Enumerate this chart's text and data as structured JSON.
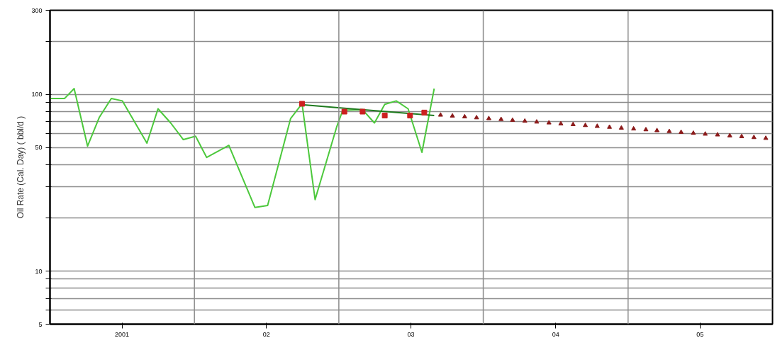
{
  "chart_data": {
    "type": "line",
    "ylabel": "Oil Rate (Cal. Day) ( bbl/d )",
    "log": "y",
    "xlim": [
      "2001-01-01",
      "2006-01-01"
    ],
    "ylim": [
      5,
      300
    ],
    "yticks": [
      5,
      {
        "value": 6,
        "label": null
      },
      {
        "value": 7,
        "label": null
      },
      {
        "value": 8,
        "label": null
      },
      {
        "value": 9,
        "label": null
      },
      10,
      {
        "value": 20,
        "label": null
      },
      {
        "value": 30,
        "label": null
      },
      {
        "value": 40,
        "label": null
      },
      50,
      {
        "value": 60,
        "label": null
      },
      {
        "value": 70,
        "label": null
      },
      {
        "value": 80,
        "label": null
      },
      {
        "value": 90,
        "label": null
      },
      100,
      {
        "value": 200,
        "label": null
      },
      300
    ],
    "xticks": [
      {
        "value": "2001-07-02",
        "label": "2001"
      },
      {
        "value": "2002-07-02",
        "label": "02"
      },
      {
        "value": "2003-07-02",
        "label": "03"
      },
      {
        "value": "2004-07-02",
        "label": "04"
      },
      {
        "value": "2005-07-02",
        "label": "05"
      }
    ],
    "grid": "y",
    "ref_lines": [
      {
        "axis": "x",
        "value": "2002-01-01",
        "color": "#8c8c8c"
      },
      {
        "axis": "x",
        "value": "2003-01-01",
        "color": "#8c8c8c"
      },
      {
        "axis": "x",
        "value": "2004-01-01",
        "color": "#8c8c8c"
      },
      {
        "axis": "x",
        "value": "2005-01-01",
        "color": "#8c8c8c"
      }
    ],
    "series": [
      {
        "marker": "none",
        "color": "#4cc83c",
        "x": [
          "2001-01-01",
          "2001-02-07",
          "2001-03-03",
          "2001-04-06",
          "2001-05-06",
          "2001-06-05",
          "2001-07-03",
          "2001-09-03",
          "2001-10-01",
          "2001-11-02",
          "2001-12-04",
          "2002-01-04",
          "2002-02-01",
          "2002-03-29",
          "2002-06-03",
          "2002-07-05",
          "2002-09-01",
          "2002-09-30",
          "2002-11-02",
          "2002-12-27",
          "2003-01-11",
          "2003-03-02",
          "2003-04-01",
          "2003-04-27",
          "2003-05-26",
          "2003-06-25",
          "2003-07-30",
          "2003-08-30"
        ],
        "values": [
          95,
          95,
          108,
          51,
          74.5,
          95,
          92,
          53,
          83,
          69,
          55.5,
          58,
          44,
          51.5,
          22.9,
          23.5,
          73,
          88.6,
          25.4,
          66,
          81.5,
          82,
          69,
          88,
          92,
          83,
          47,
          108
        ]
      },
      {
        "marker": "none",
        "color": "#1e7a1e",
        "x": [
          "2002-09-30",
          "2003-08-30"
        ],
        "values": [
          87.5,
          76
        ]
      },
      {
        "type": "scatter",
        "marker": "square",
        "color": "#cc2020",
        "x": [
          "2002-09-30",
          "2003-01-15",
          "2003-03-02",
          "2003-04-27",
          "2003-06-30",
          "2003-08-05"
        ],
        "values": [
          88.6,
          80,
          80,
          76,
          76,
          79
        ]
      },
      {
        "type": "scatter",
        "marker": "triangle",
        "color": "#8b1a1a",
        "x": [
          "2003-09-15",
          "2003-10-15",
          "2003-11-15",
          "2003-12-15",
          "2004-01-15",
          "2004-02-15",
          "2004-03-15",
          "2004-04-15",
          "2004-05-15",
          "2004-06-15",
          "2004-07-15",
          "2004-08-15",
          "2004-09-15",
          "2004-10-15",
          "2004-11-15",
          "2004-12-15",
          "2005-01-15",
          "2005-02-15",
          "2005-03-15",
          "2005-04-15",
          "2005-05-15",
          "2005-06-15",
          "2005-07-15",
          "2005-08-15",
          "2005-09-15",
          "2005-10-15",
          "2005-11-15",
          "2005-12-15"
        ],
        "values": [
          76.5,
          75.6,
          74.8,
          73.9,
          73.1,
          72.3,
          71.5,
          70.7,
          69.9,
          69.1,
          68.3,
          67.6,
          66.8,
          66.1,
          65.3,
          64.6,
          63.9,
          63.2,
          62.5,
          61.8,
          61.1,
          60.4,
          59.7,
          59.1,
          58.4,
          57.8,
          57.1,
          56.5
        ]
      }
    ]
  }
}
